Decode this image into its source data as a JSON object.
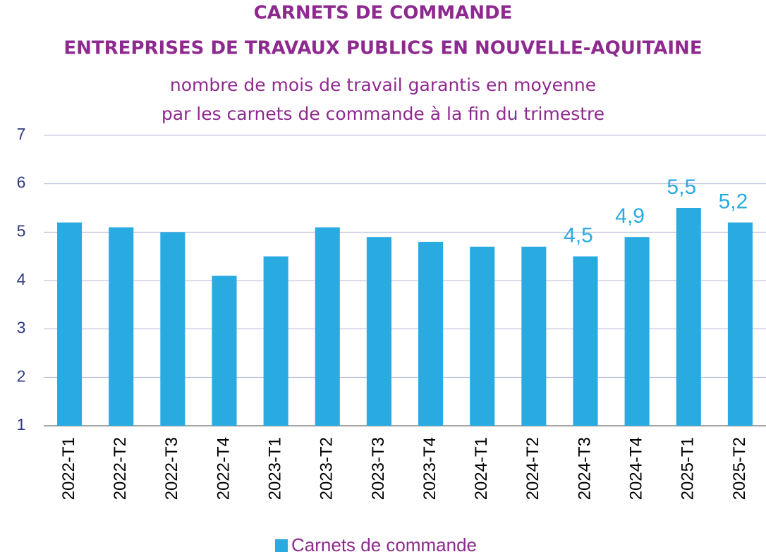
{
  "chart_data": {
    "type": "bar",
    "title": [
      "CARNETS DE COMMANDE",
      "ENTREPRISES DE TRAVAUX PUBLICS EN NOUVELLE-AQUITAINE"
    ],
    "subtitle": [
      "nombre de mois de travail garantis en moyenne",
      "par les carnets de commande à la fin du trimestre"
    ],
    "categories": [
      "2022-T1",
      "2022-T2",
      "2022-T3",
      "2022-T4",
      "2023-T1",
      "2023-T2",
      "2023-T3",
      "2023-T4",
      "2024-T1",
      "2024-T2",
      "2024-T3",
      "2024-T4",
      "2025-T1",
      "2025-T2"
    ],
    "series": [
      {
        "name": "Carnets de commande",
        "color": "#29abe2",
        "values": [
          5.2,
          5.1,
          5.0,
          4.1,
          4.5,
          5.1,
          4.9,
          4.8,
          4.7,
          4.7,
          4.5,
          4.9,
          5.5,
          5.2
        ],
        "value_labels": [
          null,
          null,
          null,
          null,
          null,
          null,
          null,
          null,
          null,
          null,
          "4,5",
          "4,9",
          "5,5",
          "5,2"
        ]
      }
    ],
    "ylim": [
      1,
      7
    ],
    "yticks": [
      1,
      2,
      3,
      4,
      5,
      6,
      7
    ],
    "grid": true,
    "legend": "bottom"
  }
}
